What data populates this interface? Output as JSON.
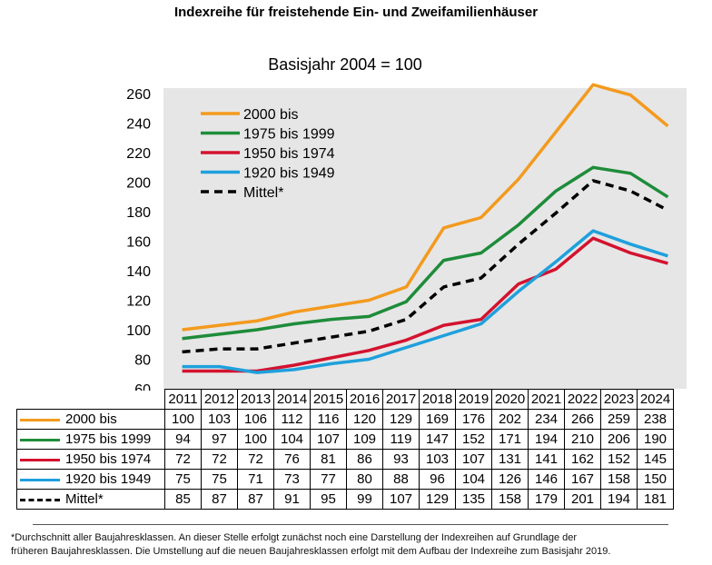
{
  "title": "Indexreihe für freistehende Ein- und Zweifamilienhäuser",
  "footnote_line1": "*Durchschnitt aller Baujahresklassen. An dieser Stelle erfolgt zunächst noch eine Darstellung der Indexreihen auf Grundlage der",
  "footnote_line2": "früheren Baujahresklassen. Die Umstellung auf die neuen Baujahresklassen erfolgt mit dem Aufbau der Indexreihe zum Basisjahr 2019.",
  "chart_data": {
    "type": "line",
    "title": "Basisjahr 2004 = 100",
    "xlabel": "",
    "ylabel": "",
    "x": [
      2011,
      2012,
      2013,
      2014,
      2015,
      2016,
      2017,
      2018,
      2019,
      2020,
      2021,
      2022,
      2023,
      2024
    ],
    "ylim": [
      60,
      260
    ],
    "yticks": [
      60,
      80,
      100,
      120,
      140,
      160,
      180,
      200,
      220,
      240,
      260
    ],
    "grid": false,
    "legend": "top-left",
    "background": "#e6e6e6",
    "series": [
      {
        "name": "2000 bis",
        "color": "#f39a1e",
        "dashed": false,
        "values": [
          100,
          103,
          106,
          112,
          116,
          120,
          129,
          169,
          176,
          202,
          234,
          266,
          259,
          238
        ]
      },
      {
        "name": "1975 bis 1999",
        "color": "#1e8c3a",
        "dashed": false,
        "values": [
          94,
          97,
          100,
          104,
          107,
          109,
          119,
          147,
          152,
          171,
          194,
          210,
          206,
          190
        ]
      },
      {
        "name": "1950 bis 1974",
        "color": "#d3132f",
        "dashed": false,
        "values": [
          72,
          72,
          72,
          76,
          81,
          86,
          93,
          103,
          107,
          131,
          141,
          162,
          152,
          145
        ]
      },
      {
        "name": "1920 bis 1949",
        "color": "#1fa0dc",
        "dashed": false,
        "values": [
          75,
          75,
          71,
          73,
          77,
          80,
          88,
          96,
          104,
          126,
          146,
          167,
          158,
          150
        ]
      },
      {
        "name": "Mittel*",
        "color": "#000000",
        "dashed": true,
        "values": [
          85,
          87,
          87,
          91,
          95,
          99,
          107,
          129,
          135,
          158,
          179,
          201,
          194,
          181
        ]
      }
    ]
  }
}
